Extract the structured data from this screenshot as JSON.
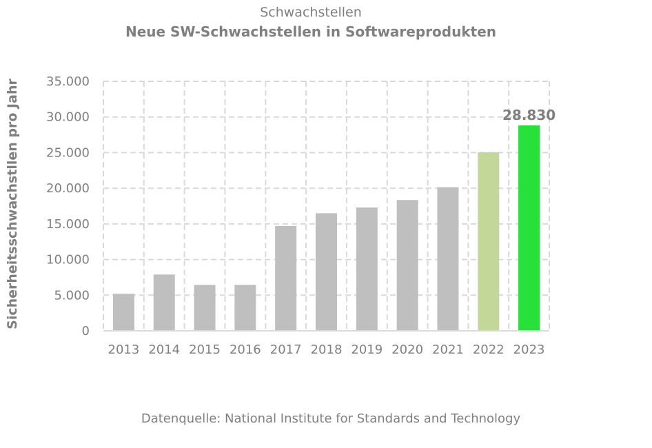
{
  "chart_data": {
    "type": "bar",
    "subtitle": "Schwachstellen",
    "title": "Neue SW-Schwachstellen in Softwareprodukten",
    "ylabel": "Sicherheitsschwachstllen pro Jahr",
    "xlabel": "",
    "categories": [
      "2013",
      "2014",
      "2015",
      "2016",
      "2017",
      "2018",
      "2019",
      "2020",
      "2021",
      "2022",
      "2023"
    ],
    "values": [
      5200,
      7900,
      6450,
      6450,
      14700,
      16500,
      17300,
      18350,
      20150,
      25050,
      28830
    ],
    "bar_colors": [
      "#bfbfbf",
      "#bfbfbf",
      "#bfbfbf",
      "#bfbfbf",
      "#bfbfbf",
      "#bfbfbf",
      "#bfbfbf",
      "#bfbfbf",
      "#bfbfbf",
      "#c4d79b",
      "#27e03a"
    ],
    "ylim": [
      0,
      35000
    ],
    "yticks": [
      0,
      5000,
      10000,
      15000,
      20000,
      25000,
      30000,
      35000
    ],
    "ytick_labels": [
      "0",
      "5.000",
      "10.000",
      "15.000",
      "20.000",
      "25.000",
      "30.000",
      "35.000"
    ],
    "data_labels": [
      {
        "category": "2023",
        "text": "28.830"
      }
    ],
    "grid": true,
    "grid_style": "dashed",
    "legend": "none"
  },
  "source": "Datenquelle: National Institute for Standards and Technology"
}
